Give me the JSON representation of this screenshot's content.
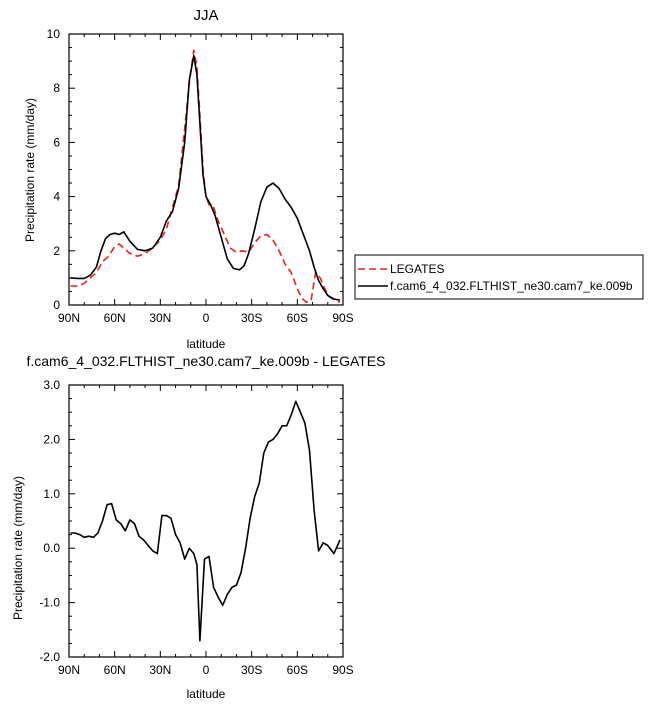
{
  "chart_data": [
    {
      "type": "line",
      "title": "JJA",
      "xlabel": "latitude",
      "ylabel": "Precipitation rate (mm/day)",
      "xlim": [
        90,
        -90
      ],
      "ylim": [
        0,
        10
      ],
      "xticks": [
        90,
        60,
        30,
        0,
        -30,
        -60,
        -90
      ],
      "xtick_labels": [
        "90N",
        "60N",
        "30N",
        "0",
        "30S",
        "60S",
        "90S"
      ],
      "yticks": [
        0,
        2,
        4,
        6,
        8,
        10
      ],
      "ytick_labels": [
        "0",
        "2",
        "4",
        "6",
        "8",
        "10"
      ],
      "legend_position": "right",
      "series": [
        {
          "name": "LEGATES",
          "color": "#e8211c",
          "dash": "dashed",
          "x": [
            89,
            84,
            80,
            76,
            72,
            68,
            64,
            60,
            57,
            54,
            50,
            45,
            40,
            35,
            30,
            26,
            22,
            18,
            14,
            11,
            8,
            6,
            4,
            2,
            0,
            -2,
            -5,
            -8,
            -12,
            -16,
            -20,
            -24,
            -28,
            -32,
            -36,
            -40,
            -44,
            -48,
            -52,
            -56,
            -60,
            -63,
            -66,
            -69,
            -72,
            -75,
            -78,
            -81,
            -84,
            -88
          ],
          "y": [
            0.7,
            0.7,
            0.8,
            1.0,
            1.2,
            1.6,
            1.8,
            2.15,
            2.25,
            2.1,
            1.9,
            1.8,
            1.9,
            2.1,
            2.4,
            2.8,
            3.6,
            4.4,
            6.5,
            8.2,
            9.4,
            8.8,
            7.0,
            5.0,
            4.0,
            3.7,
            3.6,
            3.1,
            2.6,
            2.1,
            1.95,
            2.0,
            1.95,
            2.3,
            2.55,
            2.6,
            2.4,
            2.0,
            1.5,
            1.2,
            0.6,
            0.25,
            0.1,
            0.15,
            1.2,
            1.0,
            0.6,
            0.3,
            0.2,
            0.1
          ]
        },
        {
          "name": "f.cam6_4_032.FLTHIST_ne30.cam7_ke.009b",
          "color": "#000000",
          "dash": "solid",
          "x": [
            89,
            84,
            80,
            76,
            72,
            69,
            66,
            63,
            60,
            57,
            54,
            50,
            45,
            40,
            35,
            30,
            26,
            22,
            18,
            14,
            11,
            8,
            6,
            4,
            2,
            0,
            -3,
            -6,
            -10,
            -14,
            -18,
            -22,
            -25,
            -28,
            -32,
            -36,
            -40,
            -44,
            -48,
            -52,
            -56,
            -60,
            -64,
            -68,
            -71,
            -74,
            -77,
            -80,
            -84,
            -88
          ],
          "y": [
            1.0,
            0.98,
            0.98,
            1.1,
            1.4,
            2.0,
            2.45,
            2.6,
            2.65,
            2.6,
            2.7,
            2.35,
            2.05,
            2.0,
            2.1,
            2.5,
            3.1,
            3.45,
            4.3,
            6.0,
            8.3,
            9.2,
            8.5,
            6.7,
            4.8,
            4.0,
            3.7,
            3.3,
            2.5,
            1.7,
            1.35,
            1.3,
            1.45,
            1.9,
            2.8,
            3.8,
            4.35,
            4.5,
            4.3,
            3.9,
            3.6,
            3.2,
            2.6,
            2.0,
            1.4,
            0.9,
            0.6,
            0.35,
            0.22,
            0.18
          ]
        }
      ]
    },
    {
      "type": "line",
      "title": "f.cam6_4_032.FLTHIST_ne30.cam7_ke.009b - LEGATES",
      "xlabel": "latitude",
      "ylabel": "Precipitation rate (mm/day)",
      "xlim": [
        90,
        -90
      ],
      "ylim": [
        -2,
        3
      ],
      "xticks": [
        90,
        60,
        30,
        0,
        -30,
        -60,
        -90
      ],
      "xtick_labels": [
        "90N",
        "60N",
        "30N",
        "0",
        "30S",
        "60S",
        "90S"
      ],
      "yticks": [
        -2,
        -1,
        0,
        1,
        2,
        3
      ],
      "ytick_labels": [
        "-2.0",
        "-1.0",
        "0.0",
        "1.0",
        "2.0",
        "3.0"
      ],
      "series": [
        {
          "color": "#000000",
          "dash": "solid",
          "x": [
            89,
            86,
            83,
            80,
            77,
            74,
            71,
            68,
            65,
            62,
            59,
            56,
            53,
            50,
            47,
            44,
            41,
            38,
            35,
            32,
            29,
            26,
            23,
            20,
            17,
            14,
            11,
            8,
            6,
            4,
            1,
            -2,
            -5,
            -8,
            -11,
            -14,
            -17,
            -20,
            -23,
            -26,
            -29,
            -32,
            -35,
            -38,
            -41,
            -44,
            -47,
            -50,
            -53,
            -56,
            -59,
            -62,
            -65,
            -68,
            -71,
            -74,
            -77,
            -80,
            -84,
            -88
          ],
          "y": [
            0.28,
            0.28,
            0.25,
            0.2,
            0.22,
            0.2,
            0.28,
            0.5,
            0.8,
            0.82,
            0.52,
            0.45,
            0.32,
            0.52,
            0.45,
            0.22,
            0.15,
            0.05,
            -0.05,
            -0.1,
            0.6,
            0.6,
            0.55,
            0.25,
            0.1,
            -0.2,
            0.0,
            -0.1,
            -0.3,
            -1.7,
            -0.2,
            -0.15,
            -0.72,
            -0.9,
            -1.05,
            -0.85,
            -0.72,
            -0.68,
            -0.45,
            0.0,
            0.55,
            0.95,
            1.2,
            1.75,
            1.95,
            2.0,
            2.1,
            2.25,
            2.25,
            2.45,
            2.7,
            2.5,
            2.3,
            1.8,
            0.7,
            -0.05,
            0.1,
            0.05,
            -0.1,
            0.15
          ]
        }
      ]
    }
  ]
}
